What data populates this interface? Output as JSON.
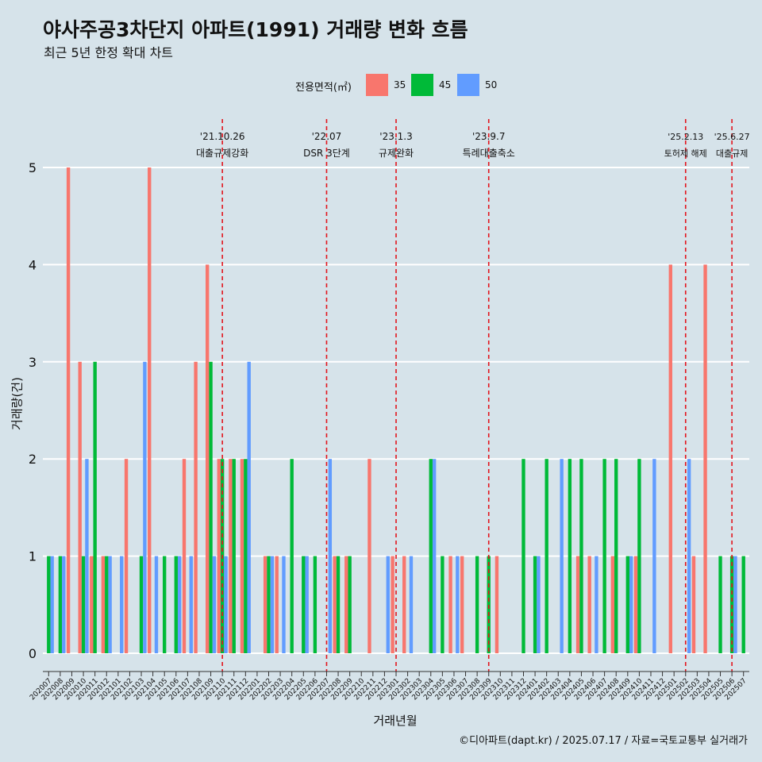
{
  "title": "야사주공3차단지 아파트(1991) 거래량 변화 흐름",
  "subtitle": "최근 5년 한정 확대 차트",
  "caption": "©디아파트(dapt.kr) / 2025.07.17 / 자료=국토교통부 실거래가",
  "legend": {
    "title": "전용면적(㎡)",
    "items": [
      {
        "label": "35",
        "color": "#f8766d"
      },
      {
        "label": "45",
        "color": "#00ba38"
      },
      {
        "label": "50",
        "color": "#619cff"
      }
    ]
  },
  "chart_data": {
    "type": "bar",
    "xlabel": "거래년월",
    "ylabel": "거래량(건)",
    "ylim": [
      0,
      5
    ],
    "yticks": [
      0,
      1,
      2,
      3,
      4,
      5
    ],
    "grid": true,
    "legend_position": "top",
    "categories": [
      "202007",
      "202008",
      "202009",
      "202010",
      "202011",
      "202012",
      "202101",
      "202102",
      "202103",
      "202104",
      "202105",
      "202106",
      "202107",
      "202108",
      "202109",
      "202110",
      "202111",
      "202112",
      "202201",
      "202202",
      "202203",
      "202204",
      "202205",
      "202206",
      "202207",
      "202208",
      "202209",
      "202210",
      "202211",
      "202212",
      "202301",
      "202302",
      "202303",
      "202304",
      "202305",
      "202306",
      "202307",
      "202308",
      "202309",
      "202310",
      "202311",
      "202312",
      "202401",
      "202402",
      "202403",
      "202404",
      "202405",
      "202406",
      "202407",
      "202408",
      "202409",
      "202410",
      "202411",
      "202412",
      "202501",
      "202502",
      "202503",
      "202504",
      "202505",
      "202506",
      "202507"
    ],
    "series": [
      {
        "name": "35",
        "values": [
          null,
          null,
          5,
          3,
          1,
          1,
          null,
          2,
          null,
          5,
          null,
          null,
          2,
          3,
          4,
          2,
          2,
          2,
          null,
          1,
          1,
          null,
          null,
          null,
          null,
          1,
          1,
          null,
          2,
          null,
          1,
          1,
          null,
          null,
          null,
          1,
          1,
          null,
          null,
          1,
          null,
          null,
          null,
          null,
          null,
          null,
          1,
          1,
          null,
          1,
          null,
          1,
          null,
          null,
          4,
          null,
          1,
          4,
          null,
          null,
          null
        ]
      },
      {
        "name": "45",
        "values": [
          1,
          1,
          null,
          1,
          3,
          1,
          null,
          null,
          1,
          null,
          1,
          1,
          null,
          null,
          3,
          2,
          2,
          2,
          null,
          1,
          null,
          2,
          1,
          1,
          null,
          1,
          1,
          null,
          null,
          null,
          null,
          null,
          null,
          2,
          1,
          null,
          null,
          1,
          1,
          null,
          null,
          2,
          1,
          2,
          null,
          2,
          2,
          null,
          2,
          2,
          1,
          2,
          null,
          null,
          null,
          null,
          null,
          null,
          1,
          1,
          1
        ]
      },
      {
        "name": "50",
        "values": [
          1,
          1,
          null,
          2,
          null,
          1,
          1,
          null,
          3,
          1,
          null,
          1,
          1,
          null,
          1,
          1,
          null,
          3,
          null,
          1,
          1,
          null,
          1,
          null,
          2,
          null,
          null,
          null,
          null,
          1,
          null,
          1,
          null,
          2,
          null,
          1,
          null,
          null,
          null,
          null,
          null,
          null,
          1,
          null,
          2,
          null,
          null,
          1,
          null,
          null,
          1,
          null,
          2,
          null,
          null,
          2,
          null,
          null,
          null,
          1,
          null
        ]
      }
    ],
    "annotations": [
      {
        "date": "'21.10.26",
        "label": "대출규제강화",
        "category": "202110"
      },
      {
        "date": "'22.07",
        "label": "DSR 3단계",
        "category": "202207"
      },
      {
        "date": "'23.1.3",
        "label": "규제완화",
        "category": "202301"
      },
      {
        "date": "'23.9.7",
        "label": "특례대출축소",
        "category": "202309"
      },
      {
        "date": "'25.2.13",
        "label": "토허제 해제",
        "category": "202502"
      },
      {
        "date": "'25.6.27",
        "label": "대출규제",
        "category": "202506"
      }
    ]
  }
}
